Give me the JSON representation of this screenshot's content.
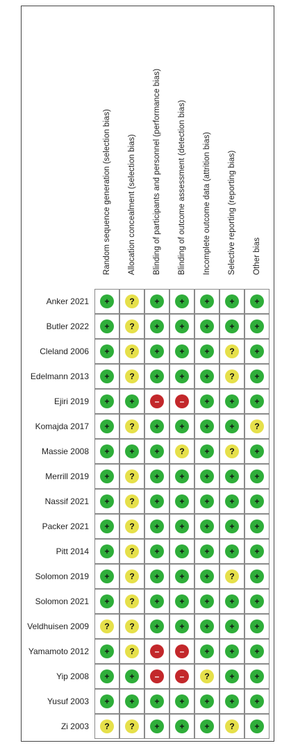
{
  "figure": {
    "domains": [
      "Random sequence generation (selection bias)",
      "Allocation concealment (selection bias)",
      "Blinding of participants and personnel (performance bias)",
      "Blinding of outcome assessment (detection bias)",
      "Incomplete outcome data (attrition bias)",
      "Selective reporting (reporting bias)",
      "Other bias"
    ],
    "symbols": {
      "low": "+",
      "unclear": "?",
      "high": "–"
    },
    "colors": {
      "low": "#2fae3a",
      "unclear": "#e6e04a",
      "high": "#c3282b"
    },
    "studies": [
      {
        "name": "Anker 2021",
        "ratings": [
          "low",
          "unclear",
          "low",
          "low",
          "low",
          "low",
          "low"
        ]
      },
      {
        "name": "Butler 2022",
        "ratings": [
          "low",
          "unclear",
          "low",
          "low",
          "low",
          "low",
          "low"
        ]
      },
      {
        "name": "Cleland 2006",
        "ratings": [
          "low",
          "unclear",
          "low",
          "low",
          "low",
          "unclear",
          "low"
        ]
      },
      {
        "name": "Edelmann 2013",
        "ratings": [
          "low",
          "unclear",
          "low",
          "low",
          "low",
          "unclear",
          "low"
        ]
      },
      {
        "name": "Ejiri 2019",
        "ratings": [
          "low",
          "low",
          "high",
          "high",
          "low",
          "low",
          "low"
        ]
      },
      {
        "name": "Komajda 2017",
        "ratings": [
          "low",
          "unclear",
          "low",
          "low",
          "low",
          "low",
          "unclear"
        ]
      },
      {
        "name": "Massie 2008",
        "ratings": [
          "low",
          "low",
          "low",
          "unclear",
          "low",
          "unclear",
          "low"
        ]
      },
      {
        "name": "Merrill 2019",
        "ratings": [
          "low",
          "unclear",
          "low",
          "low",
          "low",
          "low",
          "low"
        ]
      },
      {
        "name": "Nassif 2021",
        "ratings": [
          "low",
          "unclear",
          "low",
          "low",
          "low",
          "low",
          "low"
        ]
      },
      {
        "name": "Packer 2021",
        "ratings": [
          "low",
          "unclear",
          "low",
          "low",
          "low",
          "low",
          "low"
        ]
      },
      {
        "name": "Pitt 2014",
        "ratings": [
          "low",
          "unclear",
          "low",
          "low",
          "low",
          "low",
          "low"
        ]
      },
      {
        "name": "Solomon 2019",
        "ratings": [
          "low",
          "unclear",
          "low",
          "low",
          "low",
          "unclear",
          "low"
        ]
      },
      {
        "name": "Solomon 2021",
        "ratings": [
          "low",
          "unclear",
          "low",
          "low",
          "low",
          "low",
          "low"
        ]
      },
      {
        "name": "Veldhuisen 2009",
        "ratings": [
          "unclear",
          "unclear",
          "low",
          "low",
          "low",
          "low",
          "low"
        ]
      },
      {
        "name": "Yamamoto 2012",
        "ratings": [
          "low",
          "unclear",
          "high",
          "high",
          "low",
          "low",
          "low"
        ]
      },
      {
        "name": "Yip 2008",
        "ratings": [
          "low",
          "low",
          "high",
          "high",
          "unclear",
          "low",
          "low"
        ]
      },
      {
        "name": "Yusuf 2003",
        "ratings": [
          "low",
          "low",
          "low",
          "low",
          "low",
          "low",
          "low"
        ]
      },
      {
        "name": "Zi 2003",
        "ratings": [
          "unclear",
          "unclear",
          "low",
          "low",
          "low",
          "unclear",
          "low"
        ]
      }
    ]
  }
}
